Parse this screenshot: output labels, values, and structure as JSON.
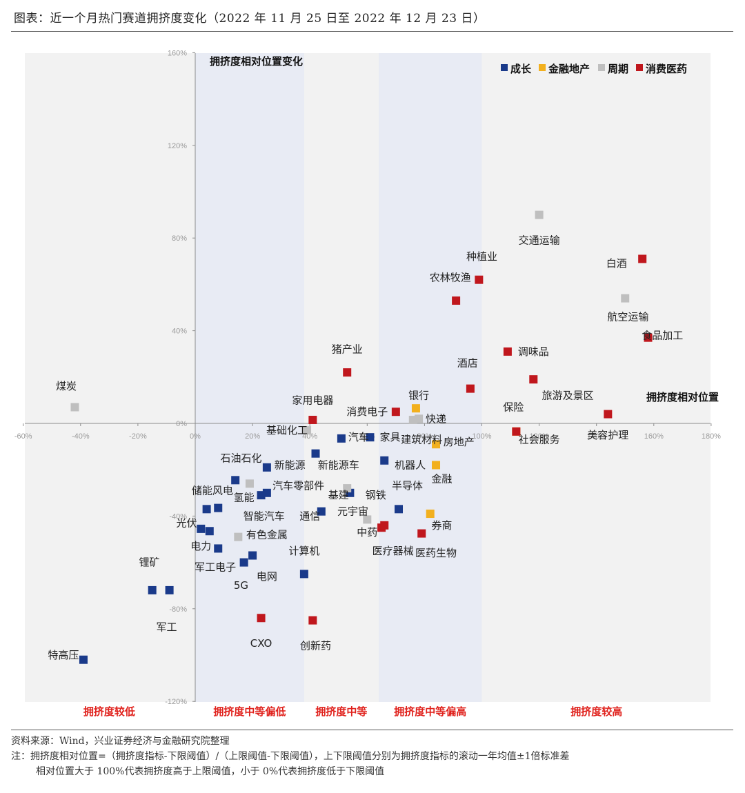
{
  "header": {
    "title": "图表：近一个月热门赛道拥挤度变化（2022 年 11 月 25 日至 2022 年 12 月 23 日）"
  },
  "footer": {
    "source": "资料来源：Wind，兴业证券经济与金融研究院整理",
    "formula": "注：拥挤度相对位置=（拥挤度指标-下限阈值）/（上限阈值-下限阈值），上下限阈值分别为拥挤度指标的滚动一年均值±1倍标准差",
    "threshold": "相对位置大于 100%代表拥挤度高于上限阈值，小于 0%代表拥挤度低于下限阈值"
  },
  "chart_data": {
    "type": "scatter",
    "title": "",
    "xlabel": "拥挤度相对位置",
    "ylabel": "拥挤度相对位置变化",
    "xlim": [
      -0.6,
      1.8
    ],
    "ylim": [
      -1.2,
      1.6
    ],
    "x_ticks": [
      "-60%",
      "-40%",
      "-20%",
      "0%",
      "20%",
      "40%",
      "60%",
      "80%",
      "100%",
      "120%",
      "140%",
      "160%",
      "180%"
    ],
    "y_ticks": [
      "-120%",
      "-80%",
      "-40%",
      "0%",
      "40%",
      "80%",
      "120%",
      "160%"
    ],
    "legend_position": "top-right",
    "grid": false,
    "zones": [
      {
        "label": "拥挤度较低",
        "x_range": [
          -0.6,
          0.0
        ],
        "shaded": false
      },
      {
        "label": "拥挤度中等偏低",
        "x_range": [
          0.0,
          0.38
        ],
        "shaded": true
      },
      {
        "label": "拥挤度中等",
        "x_range": [
          0.38,
          0.64
        ],
        "shaded": false
      },
      {
        "label": "拥挤度中等偏高",
        "x_range": [
          0.64,
          1.0
        ],
        "shaded": true
      },
      {
        "label": "拥挤度较高",
        "x_range": [
          1.0,
          1.8
        ],
        "shaded": false
      }
    ],
    "series": [
      {
        "name": "成长",
        "color": "#1a3a8a",
        "points": [
          {
            "label": "汽车",
            "x": 0.51,
            "y": -0.065
          },
          {
            "label": "家具",
            "x": 0.61,
            "y": -0.06
          },
          {
            "label": "新能源车",
            "x": 0.42,
            "y": -0.13
          },
          {
            "label": "机器人",
            "x": 0.66,
            "y": -0.16
          },
          {
            "label": "新能源",
            "x": 0.25,
            "y": -0.19
          },
          {
            "label": "储能风电",
            "x": 0.14,
            "y": -0.245
          },
          {
            "label": "氢能",
            "x": 0.25,
            "y": -0.3
          },
          {
            "label": "智能汽车",
            "x": 0.23,
            "y": -0.31
          },
          {
            "label": "基建",
            "x": 0.54,
            "y": -0.3
          },
          {
            "label": "通信",
            "x": 0.44,
            "y": -0.38
          },
          {
            "label": "半导体",
            "x": 0.71,
            "y": -0.37
          },
          {
            "label": "储能",
            "x": 0.04,
            "y": -0.37
          },
          {
            "label": "光伏",
            "x": 0.08,
            "y": -0.365
          },
          {
            "label": "光伏b",
            "x": 0.02,
            "y": -0.455
          },
          {
            "label": "光伏c",
            "x": 0.05,
            "y": -0.465
          },
          {
            "label": "电力",
            "x": 0.08,
            "y": -0.54
          },
          {
            "label": "计算机",
            "x": 0.2,
            "y": -0.57
          },
          {
            "label": "军工电子",
            "x": 0.17,
            "y": -0.6
          },
          {
            "label": "电网",
            "x": 0.38,
            "y": -0.65
          },
          {
            "label": "锂矿",
            "x": -0.15,
            "y": -0.72
          },
          {
            "label": "军工",
            "x": -0.09,
            "y": -0.72
          },
          {
            "label": "特高压",
            "x": -0.39,
            "y": -1.02
          }
        ]
      },
      {
        "name": "金融地产",
        "color": "#f2b01e",
        "points": [
          {
            "label": "银行",
            "x": 0.77,
            "y": 0.065
          },
          {
            "label": "房地产",
            "x": 0.84,
            "y": -0.09
          },
          {
            "label": "金融",
            "x": 0.84,
            "y": -0.18
          },
          {
            "label": "券商",
            "x": 0.82,
            "y": -0.39
          },
          {
            "label": "保险",
            "x": 1.12,
            "y": -0.035
          }
        ]
      },
      {
        "name": "周期",
        "color": "#bfbfbf",
        "points": [
          {
            "label": "交通运输",
            "x": 1.2,
            "y": 0.9
          },
          {
            "label": "航空运输",
            "x": 1.5,
            "y": 0.54
          },
          {
            "label": "煤炭",
            "x": -0.42,
            "y": 0.07
          },
          {
            "label": "快递",
            "x": 0.78,
            "y": 0.02
          },
          {
            "label": "建筑材料",
            "x": 0.76,
            "y": 0.015
          },
          {
            "label": "基础化工",
            "x": 0.39,
            "y": -0.03
          },
          {
            "label": "汽车零部件",
            "x": 0.19,
            "y": -0.26
          },
          {
            "label": "钢铁",
            "x": 0.53,
            "y": -0.28
          },
          {
            "label": "有色金属",
            "x": 0.15,
            "y": -0.49
          },
          {
            "label": "中药",
            "x": 0.6,
            "y": -0.415
          }
        ]
      },
      {
        "name": "消费医药",
        "color": "#c0171d",
        "points": [
          {
            "label": "白酒",
            "x": 1.56,
            "y": 0.71
          },
          {
            "label": "种植业",
            "x": 0.99,
            "y": 0.62
          },
          {
            "label": "农林牧渔",
            "x": 0.91,
            "y": 0.53
          },
          {
            "label": "食品加工",
            "x": 1.58,
            "y": 0.37
          },
          {
            "label": "调味品",
            "x": 1.09,
            "y": 0.31
          },
          {
            "label": "猪产业",
            "x": 0.53,
            "y": 0.22
          },
          {
            "label": "酒店",
            "x": 0.96,
            "y": 0.15
          },
          {
            "label": "旅游及景区",
            "x": 1.18,
            "y": 0.19
          },
          {
            "label": "消费电子",
            "x": 0.7,
            "y": 0.05
          },
          {
            "label": "家用电器",
            "x": 0.41,
            "y": 0.015
          },
          {
            "label": "美容护理",
            "x": 1.44,
            "y": 0.04
          },
          {
            "label": "社会服务",
            "x": 1.12,
            "y": -0.035
          },
          {
            "label": "中药",
            "x": 0.65,
            "y": -0.45
          },
          {
            "label": "医疗器械",
            "x": 0.66,
            "y": -0.44
          },
          {
            "label": "医药生物",
            "x": 0.79,
            "y": -0.475
          },
          {
            "label": "CXO",
            "x": 0.23,
            "y": -0.84
          },
          {
            "label": "创新药",
            "x": 0.41,
            "y": -0.85
          }
        ]
      }
    ],
    "text_labels": [
      {
        "text": "煤炭",
        "x": -0.45,
        "y": 0.16
      },
      {
        "text": "交通运输",
        "x": 1.2,
        "y": 0.79
      },
      {
        "text": "种植业",
        "x": 1.0,
        "y": 0.72
      },
      {
        "text": "白酒",
        "x": 1.47,
        "y": 0.69
      },
      {
        "text": "农林牧渔",
        "x": 0.89,
        "y": 0.63
      },
      {
        "text": "航空运输",
        "x": 1.51,
        "y": 0.46
      },
      {
        "text": "食品加工",
        "x": 1.63,
        "y": 0.38
      },
      {
        "text": "调味品",
        "x": 1.18,
        "y": 0.31
      },
      {
        "text": "猪产业",
        "x": 0.53,
        "y": 0.32
      },
      {
        "text": "酒店",
        "x": 0.95,
        "y": 0.26
      },
      {
        "text": "旅游及景区",
        "x": 1.3,
        "y": 0.12
      },
      {
        "text": "家用电器",
        "x": 0.41,
        "y": 0.1
      },
      {
        "text": "银行",
        "x": 0.78,
        "y": 0.12
      },
      {
        "text": "保险",
        "x": 1.11,
        "y": 0.07
      },
      {
        "text": "消费电子",
        "x": 0.6,
        "y": 0.05
      },
      {
        "text": "快递",
        "x": 0.84,
        "y": 0.02
      },
      {
        "text": "基础化工",
        "x": 0.32,
        "y": -0.03
      },
      {
        "text": "汽车",
        "x": 0.57,
        "y": -0.06
      },
      {
        "text": "家具",
        "x": 0.68,
        "y": -0.06
      },
      {
        "text": "建筑材料",
        "x": 0.79,
        "y": -0.07
      },
      {
        "text": "房地产",
        "x": 0.92,
        "y": -0.08
      },
      {
        "text": "社会服务",
        "x": 1.2,
        "y": -0.07
      },
      {
        "text": "美容护理",
        "x": 1.44,
        "y": -0.05
      },
      {
        "text": "石油石化",
        "x": 0.16,
        "y": -0.15
      },
      {
        "text": "新能源",
        "x": 0.33,
        "y": -0.18
      },
      {
        "text": "新能源车",
        "x": 0.5,
        "y": -0.18
      },
      {
        "text": "机器人",
        "x": 0.75,
        "y": -0.18
      },
      {
        "text": "金融",
        "x": 0.86,
        "y": -0.24
      },
      {
        "text": "储能风电",
        "x": 0.06,
        "y": -0.29
      },
      {
        "text": "汽车零部件",
        "x": 0.36,
        "y": -0.27
      },
      {
        "text": "半导体",
        "x": 0.74,
        "y": -0.27
      },
      {
        "text": "氢能",
        "x": 0.17,
        "y": -0.32
      },
      {
        "text": "基建",
        "x": 0.5,
        "y": -0.31
      },
      {
        "text": "钢铁",
        "x": 0.63,
        "y": -0.31
      },
      {
        "text": "智能汽车",
        "x": 0.24,
        "y": -0.4
      },
      {
        "text": "通信",
        "x": 0.4,
        "y": -0.4
      },
      {
        "text": "元宇宙",
        "x": 0.55,
        "y": -0.38
      },
      {
        "text": "光伏",
        "x": -0.03,
        "y": -0.43
      },
      {
        "text": "券商",
        "x": 0.86,
        "y": -0.44
      },
      {
        "text": "中药",
        "x": 0.6,
        "y": -0.47
      },
      {
        "text": "有色金属",
        "x": 0.25,
        "y": -0.48
      },
      {
        "text": "电力",
        "x": 0.02,
        "y": -0.53
      },
      {
        "text": "医疗器械",
        "x": 0.69,
        "y": -0.55
      },
      {
        "text": "医药生物",
        "x": 0.84,
        "y": -0.56
      },
      {
        "text": "计算机",
        "x": 0.38,
        "y": -0.55
      },
      {
        "text": "锂矿",
        "x": -0.16,
        "y": -0.6
      },
      {
        "text": "军工电子",
        "x": 0.07,
        "y": -0.62
      },
      {
        "text": "电网",
        "x": 0.25,
        "y": -0.66
      },
      {
        "text": "5G",
        "x": 0.16,
        "y": -0.7
      },
      {
        "text": "军工",
        "x": -0.1,
        "y": -0.88
      },
      {
        "text": "CXO",
        "x": 0.23,
        "y": -0.95
      },
      {
        "text": "创新药",
        "x": 0.42,
        "y": -0.96
      },
      {
        "text": "特高压",
        "x": -0.46,
        "y": -1.0
      }
    ]
  }
}
